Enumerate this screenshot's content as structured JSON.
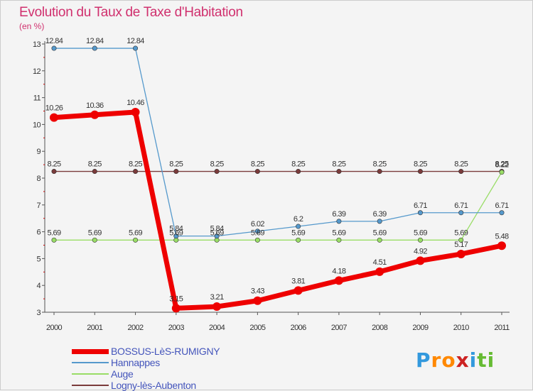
{
  "chart_data": {
    "type": "line",
    "title": "Evolution du Taux de Taxe d'Habitation",
    "ylabel": "(en %)",
    "xlabel": "",
    "x": [
      "2000",
      "2001",
      "2002",
      "2003",
      "2004",
      "2005",
      "2006",
      "2007",
      "2008",
      "2009",
      "2010",
      "2011"
    ],
    "yticks": [
      "3",
      "4",
      "5",
      "6",
      "7",
      "8",
      "9",
      "10",
      "11",
      "12",
      "13"
    ],
    "ylim": [
      3,
      13
    ],
    "grid": false,
    "legend_position": "bottom-left",
    "series": [
      {
        "name": "Logny-lès-Aubenton",
        "color": "#7a3b3b",
        "values": [
          8.25,
          8.25,
          8.25,
          8.25,
          8.25,
          8.25,
          8.25,
          8.25,
          8.25,
          8.25,
          8.25,
          8.25
        ],
        "labels": [
          "8.25",
          "8.25",
          "8.25",
          "8.25",
          "8.25",
          "8.25",
          "8.25",
          "8.25",
          "8.25",
          "8.25",
          "8.25",
          "8.25"
        ]
      },
      {
        "name": "Auge",
        "color": "#99dd66",
        "values": [
          5.69,
          5.69,
          5.69,
          5.69,
          5.69,
          5.69,
          5.69,
          5.69,
          5.69,
          5.69,
          5.69,
          8.22
        ],
        "labels": [
          "5.69",
          "5.69",
          "5.69",
          "5.69",
          "5.69",
          "5.69",
          "5.69",
          "5.69",
          "5.69",
          "5.69",
          "5.69",
          "8.22"
        ]
      },
      {
        "name": "Hannappes",
        "color": "#5599cc",
        "values": [
          12.84,
          12.84,
          12.84,
          5.84,
          5.84,
          6.02,
          6.2,
          6.39,
          6.39,
          6.71,
          6.71,
          6.71
        ],
        "labels": [
          "12.84",
          "12.84",
          "12.84",
          "5.84",
          "5.84",
          "6.02",
          "6.2",
          "6.39",
          "6.39",
          "6.71",
          "6.71",
          "6.71"
        ]
      },
      {
        "name": "BOSSUS-LèS-RUMIGNY",
        "color": "#ee0000",
        "values": [
          10.26,
          10.36,
          10.46,
          3.15,
          3.21,
          3.43,
          3.81,
          4.18,
          4.51,
          4.92,
          5.17,
          5.48
        ],
        "labels": [
          "10.26",
          "10.36",
          "10.46",
          "3.15",
          "3.21",
          "3.43",
          "3.81",
          "4.18",
          "4.51",
          "4.92",
          "5.17",
          "5.48"
        ]
      }
    ]
  },
  "legend": {
    "items": [
      {
        "label": "BOSSUS-LèS-RUMIGNY",
        "color": "#ee0000",
        "weight": "thick"
      },
      {
        "label": "Hannappes",
        "color": "#5599cc",
        "weight": "thin"
      },
      {
        "label": "Auge",
        "color": "#99dd66",
        "weight": "thin"
      },
      {
        "label": "Logny-lès-Aubenton",
        "color": "#7a3b3b",
        "weight": "thin"
      }
    ]
  },
  "logo": {
    "text": "Proxiti",
    "letters": [
      {
        "ch": "P",
        "color": "#3399dd"
      },
      {
        "ch": "r",
        "color": "#ff8800"
      },
      {
        "ch": "o",
        "color": "#ff8800"
      },
      {
        "ch": "x",
        "color": "#cc2222"
      },
      {
        "ch": "i",
        "color": "#3399dd"
      },
      {
        "ch": "t",
        "color": "#66bb33"
      },
      {
        "ch": "i",
        "color": "#66bb33"
      }
    ]
  }
}
